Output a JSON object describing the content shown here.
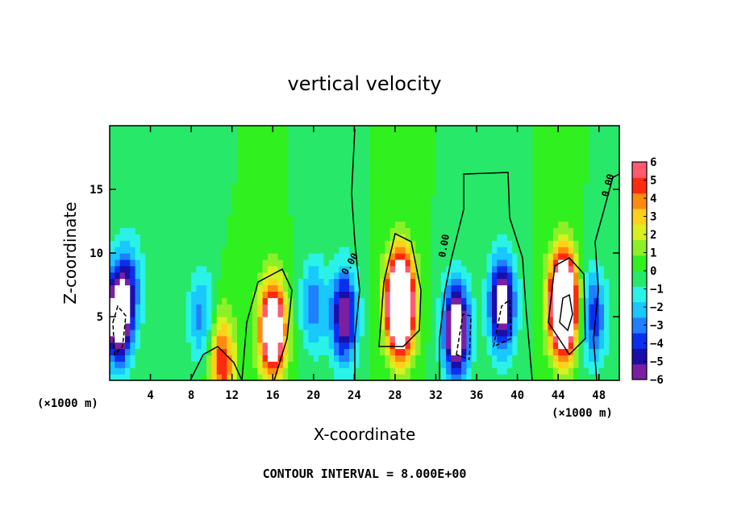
{
  "chart_data": {
    "type": "heatmap",
    "title": "vertical velocity",
    "xlabel": "X-coordinate",
    "ylabel": "Z-coordinate",
    "x_unit": "(×1000 m)",
    "x_unit_right": "(×1000 m)",
    "xlim": [
      0,
      50
    ],
    "ylim": [
      0,
      20
    ],
    "x_ticks": [
      4,
      8,
      12,
      16,
      20,
      24,
      28,
      32,
      36,
      40,
      44,
      48
    ],
    "y_ticks": [
      5,
      10,
      15
    ],
    "footnote": "CONTOUR INTERVAL = 8.000E+00",
    "contour_labels": [
      "0.00",
      "0.00",
      "0.00"
    ],
    "colorbar": {
      "ticks": [
        "6",
        "5",
        "4",
        "3",
        "2",
        "1",
        "0",
        "−1",
        "−2",
        "−3",
        "−4",
        "−5",
        "−6"
      ],
      "range": [
        -6,
        6
      ],
      "colors": [
        "#7a1fa2",
        "#1a0fa8",
        "#0a2ff0",
        "#1f7fff",
        "#18c8ff",
        "#2af2e6",
        "#28e86a",
        "#30f020",
        "#8cf028",
        "#d8f020",
        "#ffd01a",
        "#ff8a10",
        "#ff2a10",
        "#ff5a70"
      ]
    },
    "features": [
      {
        "x": 0.8,
        "z": 5.0,
        "w": -8
      },
      {
        "x": 2.0,
        "z": 7.5,
        "w": -3
      },
      {
        "x": 9.0,
        "z": 5.0,
        "w": -3
      },
      {
        "x": 11.0,
        "z": 1.5,
        "w": 5
      },
      {
        "x": 16.0,
        "z": 4.0,
        "w": 9
      },
      {
        "x": 20.0,
        "z": 6.0,
        "w": -3
      },
      {
        "x": 23.0,
        "z": 5.0,
        "w": -6
      },
      {
        "x": 28.5,
        "z": 6.0,
        "w": 14
      },
      {
        "x": 34.0,
        "z": 4.0,
        "w": -8
      },
      {
        "x": 38.5,
        "z": 6.0,
        "w": -7
      },
      {
        "x": 44.5,
        "z": 6.0,
        "w": 14
      },
      {
        "x": 47.5,
        "z": 5.0,
        "w": -4
      }
    ]
  }
}
